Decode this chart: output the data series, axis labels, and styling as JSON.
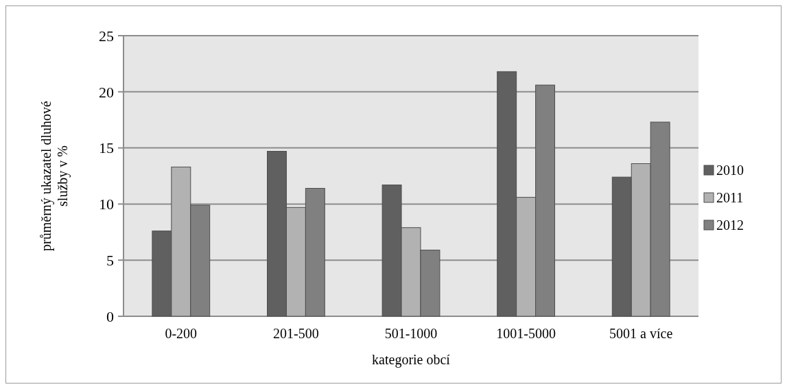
{
  "chart_data": {
    "type": "bar",
    "xlabel": "kategorie obcí",
    "ylabel": "průměrný ukazatel dluhové\nslužby v %",
    "categories": [
      "0-200",
      "201-500",
      "501-1000",
      "1001-5000",
      "5001 a více"
    ],
    "series": [
      {
        "name": "2010",
        "color": "#606060",
        "values": [
          7.6,
          14.7,
          11.7,
          21.8,
          12.4
        ]
      },
      {
        "name": "2011",
        "color": "#b2b2b2",
        "values": [
          13.3,
          9.7,
          7.9,
          10.6,
          13.6
        ]
      },
      {
        "name": "2012",
        "color": "#808080",
        "values": [
          9.9,
          11.4,
          5.9,
          20.6,
          17.3
        ]
      }
    ],
    "ylim": [
      0,
      25
    ],
    "yticks": [
      0,
      5,
      10,
      15,
      20,
      25
    ],
    "grid": "y",
    "legend": "right"
  }
}
